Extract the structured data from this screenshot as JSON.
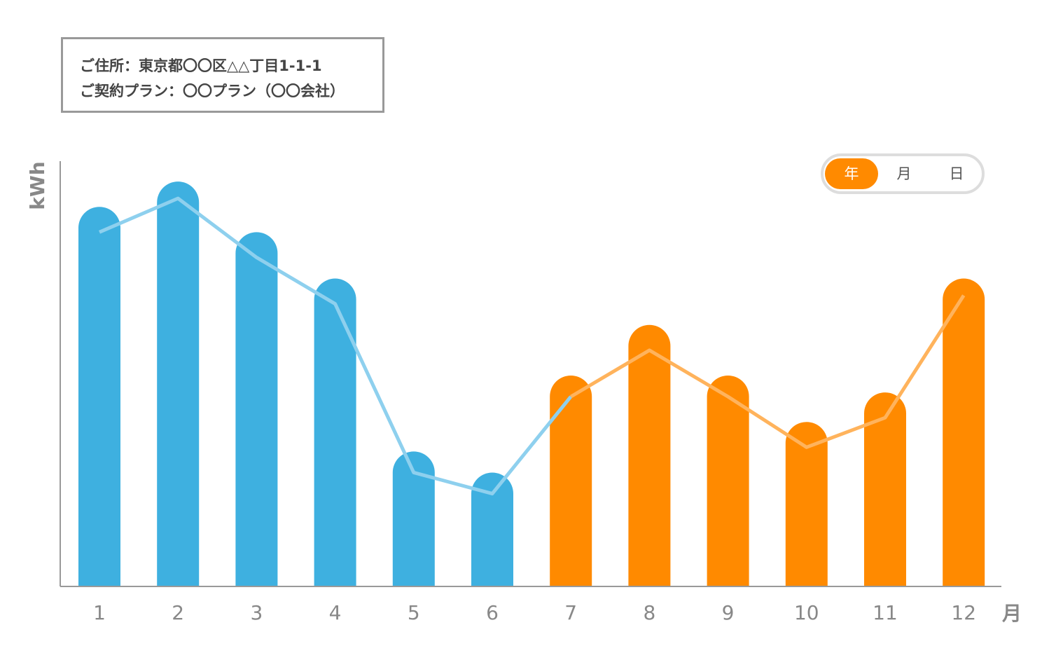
{
  "info": {
    "address_line": "ご住所：東京都〇〇区△△丁目1-1-1",
    "plan_line": "ご契約プラン：〇〇プラン（〇〇会社）"
  },
  "period_toggle": {
    "options": [
      "年",
      "月",
      "日"
    ],
    "selected": "年"
  },
  "chart_data": {
    "type": "bar",
    "categories": [
      "1",
      "2",
      "3",
      "4",
      "5",
      "6",
      "7",
      "8",
      "9",
      "10",
      "11",
      "12"
    ],
    "ylabel": "kWh",
    "xlabel": "月",
    "ylim": [
      0,
      100
    ],
    "series": [
      {
        "type": "bar",
        "values": [
          90,
          96,
          84,
          73,
          32,
          27,
          50,
          62,
          50,
          39,
          46,
          73
        ]
      },
      {
        "type": "line",
        "values": [
          84,
          92,
          78,
          67,
          27,
          22,
          45,
          56,
          45,
          33,
          40,
          69
        ]
      }
    ],
    "grid": false,
    "colors": {
      "bar_first_half": "#3eb0e0",
      "bar_second_half": "#ff8a00",
      "line_first_half": "#8ed0ee",
      "line_second_half": "#ffb35c",
      "axis": "#999999"
    }
  }
}
